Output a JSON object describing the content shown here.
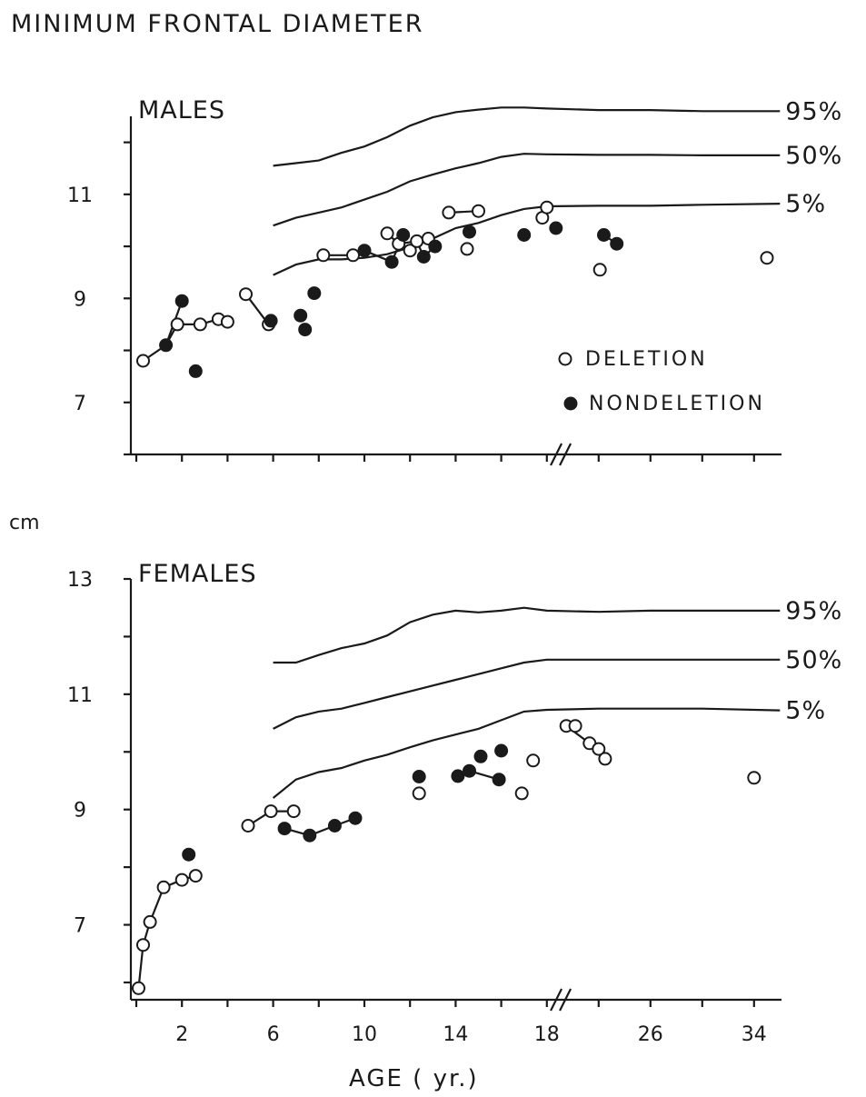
{
  "figure": {
    "title": "MINIMUM FRONTAL DIAMETER",
    "unit": "cm",
    "x_label": "AGE ( yr.)"
  },
  "chart_data": [
    {
      "type": "scatter",
      "title": "MALES",
      "xlabel": "AGE ( yr.)",
      "ylabel": "cm",
      "x_axis": "age in years; linear 0-18, axis break (//), compressed 18-36",
      "ylim": [
        6,
        12.5
      ],
      "yticks": [
        7,
        9,
        11
      ],
      "xticks": [],
      "percentiles": [
        {
          "name": "95%",
          "x": [
            6,
            7,
            8,
            9,
            10,
            11,
            12,
            13,
            14,
            15,
            16,
            17,
            18,
            22,
            26,
            30,
            36
          ],
          "y": [
            11.55,
            11.6,
            11.65,
            11.8,
            11.92,
            12.1,
            12.32,
            12.48,
            12.58,
            12.63,
            12.67,
            12.67,
            12.65,
            12.62,
            12.62,
            12.6,
            12.6
          ]
        },
        {
          "name": "50%",
          "x": [
            6,
            7,
            8,
            9,
            10,
            11,
            12,
            13,
            14,
            15,
            16,
            17,
            18,
            22,
            26,
            30,
            36
          ],
          "y": [
            10.4,
            10.55,
            10.65,
            10.75,
            10.9,
            11.05,
            11.25,
            11.38,
            11.5,
            11.6,
            11.72,
            11.78,
            11.77,
            11.76,
            11.76,
            11.75,
            11.75
          ]
        },
        {
          "name": "5%",
          "x": [
            6,
            7,
            8,
            9,
            10,
            11,
            12,
            13,
            14,
            15,
            16,
            17,
            18,
            22,
            26,
            30,
            36
          ],
          "y": [
            9.45,
            9.65,
            9.75,
            9.75,
            9.78,
            9.85,
            9.98,
            10.15,
            10.35,
            10.45,
            10.6,
            10.72,
            10.77,
            10.78,
            10.78,
            10.8,
            10.82
          ]
        }
      ],
      "series": [
        {
          "name": "DELETION",
          "marker": "open",
          "x": [
            0.3,
            1.8,
            2.8,
            3.6,
            4.0,
            4.8,
            5.8,
            8.2,
            9.5,
            11.0,
            11.5,
            12.0,
            12.3,
            12.8,
            13.7,
            14.5,
            15.0,
            17.8,
            18.0,
            22.1,
            35.0
          ],
          "y": [
            7.8,
            8.5,
            8.5,
            8.6,
            8.55,
            9.08,
            8.5,
            9.83,
            9.83,
            10.25,
            10.05,
            9.92,
            10.1,
            10.15,
            10.65,
            9.95,
            10.68,
            10.55,
            10.75,
            9.55,
            9.78
          ]
        },
        {
          "name": "NONDELETION",
          "marker": "filled",
          "x": [
            1.3,
            2.0,
            2.6,
            5.9,
            7.2,
            7.4,
            7.8,
            10.0,
            11.2,
            11.7,
            12.6,
            13.1,
            14.6,
            17.0,
            18.7,
            22.4,
            23.4
          ],
          "y": [
            8.1,
            8.95,
            7.6,
            8.57,
            8.67,
            8.4,
            9.1,
            9.92,
            9.7,
            10.22,
            9.8,
            10.0,
            10.28,
            10.22,
            10.35,
            10.22,
            10.05
          ]
        }
      ],
      "connectors": [
        [
          [
            0.3,
            7.8
          ],
          [
            1.3,
            8.1
          ],
          [
            2.0,
            8.95
          ]
        ],
        [
          [
            1.3,
            8.1
          ],
          [
            1.8,
            8.5
          ],
          [
            2.8,
            8.5
          ],
          [
            3.6,
            8.6
          ],
          [
            4.0,
            8.55
          ]
        ],
        [
          [
            4.8,
            9.08
          ],
          [
            5.8,
            8.5
          ]
        ],
        [
          [
            8.2,
            9.83
          ],
          [
            9.5,
            9.83
          ],
          [
            10.0,
            9.92
          ],
          [
            11.2,
            9.7
          ],
          [
            11.7,
            10.22
          ]
        ],
        [
          [
            11.0,
            10.25
          ],
          [
            11.5,
            10.05
          ],
          [
            12.3,
            10.1
          ],
          [
            12.6,
            9.8
          ],
          [
            13.1,
            10.0
          ]
        ],
        [
          [
            13.7,
            10.65
          ],
          [
            15.0,
            10.68
          ]
        ],
        [
          [
            17.8,
            10.55
          ],
          [
            18.0,
            10.75
          ]
        ],
        [
          [
            22.4,
            10.22
          ],
          [
            23.4,
            10.05
          ]
        ]
      ],
      "legend": {
        "placement": "lower-right",
        "entries": [
          {
            "label": "DELETION",
            "marker": "open"
          },
          {
            "label": "NONDELETION",
            "marker": "filled"
          }
        ]
      }
    },
    {
      "type": "scatter",
      "title": "FEMALES",
      "xlabel": "AGE ( yr.)",
      "ylabel": "cm",
      "x_axis": "age in years; linear 0-18, axis break (//), compressed 18-36",
      "ylim": [
        5.7,
        13
      ],
      "yticks": [
        7,
        9,
        11,
        13
      ],
      "xticks": [
        2,
        6,
        10,
        14,
        18,
        26,
        34
      ],
      "percentiles": [
        {
          "name": "95%",
          "x": [
            6,
            7,
            8,
            9,
            10,
            11,
            12,
            13,
            14,
            15,
            16,
            17,
            18,
            22,
            26,
            30,
            36
          ],
          "y": [
            11.55,
            11.55,
            11.68,
            11.8,
            11.88,
            12.02,
            12.25,
            12.38,
            12.45,
            12.42,
            12.45,
            12.5,
            12.45,
            12.43,
            12.45,
            12.45,
            12.45
          ]
        },
        {
          "name": "50%",
          "x": [
            6,
            7,
            8,
            9,
            10,
            11,
            12,
            13,
            14,
            15,
            16,
            17,
            18,
            22,
            26,
            30,
            36
          ],
          "y": [
            10.4,
            10.6,
            10.7,
            10.75,
            10.85,
            10.95,
            11.05,
            11.15,
            11.25,
            11.35,
            11.45,
            11.55,
            11.6,
            11.6,
            11.6,
            11.6,
            11.6
          ]
        },
        {
          "name": "5%",
          "x": [
            6,
            7,
            8,
            9,
            10,
            11,
            12,
            13,
            14,
            15,
            16,
            17,
            18,
            22,
            26,
            30,
            36
          ],
          "y": [
            9.2,
            9.52,
            9.65,
            9.72,
            9.85,
            9.95,
            10.08,
            10.2,
            10.3,
            10.4,
            10.55,
            10.7,
            10.73,
            10.75,
            10.75,
            10.75,
            10.72
          ]
        }
      ],
      "series": [
        {
          "name": "DELETION",
          "marker": "open",
          "x": [
            0.1,
            0.3,
            0.6,
            1.2,
            2.0,
            2.6,
            4.9,
            5.9,
            6.9,
            12.4,
            16.9,
            17.4,
            19.5,
            20.2,
            21.3,
            22.0,
            22.5,
            34.0
          ],
          "y": [
            5.9,
            6.65,
            7.05,
            7.65,
            7.78,
            7.85,
            8.72,
            8.97,
            8.97,
            9.28,
            9.28,
            9.85,
            10.45,
            10.45,
            10.15,
            10.05,
            9.88,
            9.55
          ]
        },
        {
          "name": "NONDELETION",
          "marker": "filled",
          "x": [
            2.3,
            6.5,
            7.6,
            8.7,
            9.6,
            12.4,
            14.1,
            14.6,
            15.1,
            15.9,
            16.0
          ],
          "y": [
            8.22,
            8.67,
            8.55,
            8.72,
            8.85,
            9.57,
            9.58,
            9.67,
            9.92,
            9.52,
            10.02
          ]
        }
      ],
      "connectors": [
        [
          [
            0.1,
            5.9
          ],
          [
            0.3,
            6.65
          ],
          [
            0.6,
            7.05
          ],
          [
            1.2,
            7.65
          ],
          [
            2.0,
            7.78
          ],
          [
            2.6,
            7.85
          ]
        ],
        [
          [
            4.9,
            8.72
          ],
          [
            5.9,
            8.97
          ]
        ],
        [
          [
            5.9,
            8.97
          ],
          [
            6.9,
            8.97
          ]
        ],
        [
          [
            6.5,
            8.67
          ],
          [
            7.6,
            8.55
          ],
          [
            8.7,
            8.72
          ],
          [
            9.6,
            8.85
          ]
        ],
        [
          [
            14.1,
            9.58
          ],
          [
            14.6,
            9.67
          ],
          [
            15.9,
            9.52
          ]
        ],
        [
          [
            19.5,
            10.45
          ],
          [
            21.3,
            10.15
          ],
          [
            22.0,
            10.05
          ],
          [
            22.5,
            9.88
          ]
        ]
      ],
      "legend": null
    }
  ]
}
